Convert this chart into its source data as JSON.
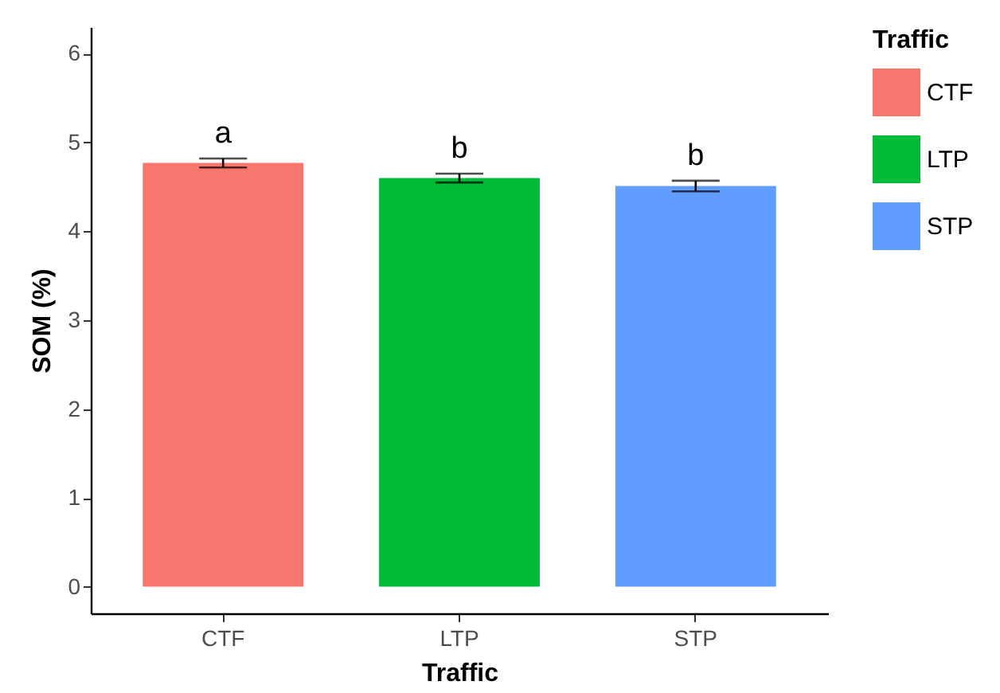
{
  "chart_data": {
    "type": "bar",
    "xlabel": "Traffic",
    "ylabel": "SOM (%)",
    "legend_title": "Traffic",
    "legend": "right",
    "categories": [
      "CTF",
      "LTP",
      "STP"
    ],
    "series": [
      {
        "name": "CTF",
        "color": "#f8766d",
        "values": [
          4.77,
          null,
          null
        ],
        "errors": [
          0.05,
          null,
          null
        ]
      },
      {
        "name": "LTP",
        "color": "#00ba38",
        "values": [
          null,
          4.6,
          null
        ],
        "errors": [
          null,
          0.05,
          null
        ]
      },
      {
        "name": "STP",
        "color": "#619cff",
        "values": [
          null,
          null,
          4.51
        ],
        "errors": [
          null,
          null,
          0.06
        ]
      }
    ],
    "ylim": [
      -0.3,
      6.3
    ],
    "yticks": [
      0,
      1,
      2,
      3,
      4,
      5,
      6
    ],
    "annotations": [
      "a",
      "b",
      "b"
    ]
  }
}
